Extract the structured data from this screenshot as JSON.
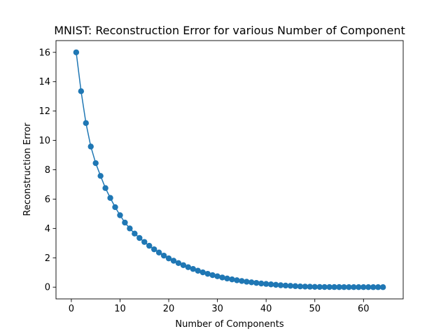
{
  "chart_data": {
    "type": "line",
    "title": "MNIST: Reconstruction Error for various Number of Component",
    "xlabel": "Number of Components",
    "ylabel": "Reconstruction Error",
    "xlim": [
      -3.15,
      68.15
    ],
    "ylim": [
      -0.8,
      16.8
    ],
    "xticks": [
      0,
      10,
      20,
      30,
      40,
      50,
      60
    ],
    "yticks": [
      0,
      2,
      4,
      6,
      8,
      10,
      12,
      14,
      16
    ],
    "grid": false,
    "legend": "none",
    "marker": "circle",
    "series": [
      {
        "color": "#1f77b4",
        "x": [
          1,
          2,
          3,
          4,
          5,
          6,
          7,
          8,
          9,
          10,
          11,
          12,
          13,
          14,
          15,
          16,
          17,
          18,
          19,
          20,
          21,
          22,
          23,
          24,
          25,
          26,
          27,
          28,
          29,
          30,
          31,
          32,
          33,
          34,
          35,
          36,
          37,
          38,
          39,
          40,
          41,
          42,
          43,
          44,
          45,
          46,
          47,
          48,
          49,
          50,
          51,
          52,
          53,
          54,
          55,
          56,
          57,
          58,
          59,
          60,
          61,
          62,
          63,
          64
        ],
        "y": [
          16.0,
          13.35,
          11.18,
          9.58,
          8.45,
          7.58,
          6.75,
          6.08,
          5.45,
          4.9,
          4.4,
          4.0,
          3.65,
          3.35,
          3.08,
          2.82,
          2.58,
          2.36,
          2.15,
          1.96,
          1.8,
          1.64,
          1.5,
          1.36,
          1.24,
          1.12,
          1.01,
          0.91,
          0.82,
          0.74,
          0.66,
          0.59,
          0.53,
          0.47,
          0.42,
          0.37,
          0.33,
          0.29,
          0.25,
          0.22,
          0.19,
          0.16,
          0.13,
          0.11,
          0.09,
          0.07,
          0.05,
          0.04,
          0.03,
          0.02,
          0.015,
          0.01,
          0.008,
          0.006,
          0.005,
          0.004,
          0.003,
          0.002,
          0.0015,
          0.001,
          0.0008,
          0.0005,
          0.0003,
          0.0
        ]
      }
    ]
  }
}
